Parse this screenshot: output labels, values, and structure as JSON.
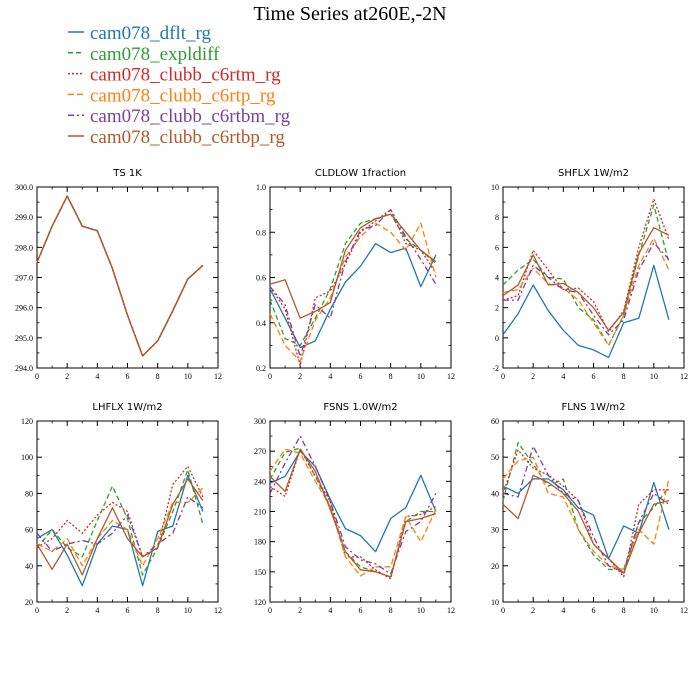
{
  "title": "Time Series at260E,-2N",
  "legend": [
    {
      "name": "cam078_dflt_rg",
      "color": "#1f77b4",
      "dash": ""
    },
    {
      "name": "cam078_expldiff",
      "color": "#2ca02c",
      "dash": "5,3"
    },
    {
      "name": "cam078_clubb_c6rtm_rg",
      "color": "#d62728",
      "dash": "2,2"
    },
    {
      "name": "cam078_clubb_c6rtp_rg",
      "color": "#ff7f0e",
      "dash": "6,3"
    },
    {
      "name": "cam078_clubb_c6rtbm_rg",
      "color": "#7b3fa0",
      "dash": "6,3,2,3"
    },
    {
      "name": "cam078_clubb_c6rtbp_rg",
      "color": "#b0592a",
      "dash": ""
    }
  ],
  "chart_data": [
    {
      "type": "line",
      "title": "TS   1K",
      "x": [
        0,
        1,
        2,
        3,
        4,
        5,
        6,
        7,
        8,
        9,
        10,
        11
      ],
      "xlim": [
        0,
        12
      ],
      "xticks": [
        0,
        2,
        4,
        6,
        8,
        10,
        12
      ],
      "ylim": [
        294.0,
        300.0
      ],
      "yticks": [
        "294.0",
        "295.0",
        "296.0",
        "297.0",
        "298.0",
        "299.0",
        "300.0"
      ],
      "series": [
        {
          "values": [
            297.5,
            298.7,
            299.7,
            298.7,
            298.55,
            297.3,
            295.75,
            294.4,
            294.9,
            295.9,
            296.95,
            297.4
          ]
        },
        {
          "values": [
            297.5,
            298.7,
            299.7,
            298.7,
            298.55,
            297.3,
            295.75,
            294.4,
            294.9,
            295.9,
            296.95,
            297.4
          ]
        },
        {
          "values": [
            297.5,
            298.7,
            299.7,
            298.7,
            298.55,
            297.3,
            295.75,
            294.4,
            294.9,
            295.9,
            296.95,
            297.4
          ]
        },
        {
          "values": [
            297.5,
            298.7,
            299.7,
            298.7,
            298.55,
            297.3,
            295.75,
            294.4,
            294.9,
            295.9,
            296.95,
            297.4
          ]
        },
        {
          "values": [
            297.5,
            298.7,
            299.7,
            298.7,
            298.55,
            297.3,
            295.75,
            294.4,
            294.9,
            295.9,
            296.95,
            297.4
          ]
        },
        {
          "values": [
            297.5,
            298.7,
            299.7,
            298.7,
            298.55,
            297.3,
            295.75,
            294.4,
            294.9,
            295.9,
            296.95,
            297.4
          ]
        }
      ]
    },
    {
      "type": "line",
      "title": "CLDLOW   1fraction",
      "x": [
        0,
        1,
        2,
        3,
        4,
        5,
        6,
        7,
        8,
        9,
        10,
        11
      ],
      "xlim": [
        0,
        12
      ],
      "xticks": [
        0,
        2,
        4,
        6,
        8,
        10,
        12
      ],
      "ylim": [
        0.2,
        1.0
      ],
      "yticks": [
        "0.2",
        "0.4",
        "0.6",
        "0.8",
        "1.0"
      ],
      "series": [
        {
          "values": [
            0.55,
            0.42,
            0.29,
            0.32,
            0.46,
            0.58,
            0.65,
            0.75,
            0.71,
            0.73,
            0.56,
            0.7
          ]
        },
        {
          "values": [
            0.5,
            0.33,
            0.3,
            0.42,
            0.55,
            0.75,
            0.84,
            0.86,
            0.88,
            0.77,
            0.72,
            0.66
          ]
        },
        {
          "values": [
            0.56,
            0.46,
            0.21,
            0.51,
            0.54,
            0.66,
            0.8,
            0.85,
            0.9,
            0.75,
            0.72,
            0.62
          ]
        },
        {
          "values": [
            0.44,
            0.3,
            0.23,
            0.41,
            0.51,
            0.69,
            0.78,
            0.84,
            0.8,
            0.72,
            0.84,
            0.6
          ]
        },
        {
          "values": [
            0.56,
            0.48,
            0.25,
            0.48,
            0.42,
            0.67,
            0.81,
            0.83,
            0.9,
            0.78,
            0.68,
            0.57
          ]
        },
        {
          "values": [
            0.57,
            0.59,
            0.42,
            0.45,
            0.49,
            0.72,
            0.82,
            0.86,
            0.88,
            0.8,
            0.72,
            0.67
          ]
        }
      ]
    },
    {
      "type": "line",
      "title": "SHFLX   1W/m2",
      "x": [
        0,
        1,
        2,
        3,
        4,
        5,
        6,
        7,
        8,
        9,
        10,
        11
      ],
      "xlim": [
        0,
        12
      ],
      "xticks": [
        0,
        2,
        4,
        6,
        8,
        10,
        12
      ],
      "ylim": [
        -2,
        10
      ],
      "yticks": [
        "-2",
        "0",
        "2",
        "4",
        "6",
        "8",
        "10"
      ],
      "series": [
        {
          "values": [
            0.2,
            1.6,
            3.5,
            1.8,
            0.5,
            -0.5,
            -0.8,
            -1.3,
            1.0,
            1.3,
            4.8,
            1.2
          ]
        },
        {
          "values": [
            3.5,
            4.5,
            5.2,
            4.0,
            3.9,
            2.0,
            1.2,
            -0.5,
            1.5,
            5.5,
            8.8,
            5.0
          ]
        },
        {
          "values": [
            2.5,
            2.8,
            5.8,
            4.5,
            3.2,
            3.3,
            2.4,
            0.4,
            1.8,
            6.0,
            9.2,
            6.5
          ]
        },
        {
          "values": [
            3.0,
            3.2,
            4.6,
            3.6,
            3.3,
            2.5,
            1.0,
            -0.5,
            1.5,
            4.8,
            6.6,
            4.5
          ]
        },
        {
          "values": [
            2.5,
            2.5,
            4.8,
            4.0,
            3.2,
            3.0,
            1.5,
            0.2,
            1.2,
            4.5,
            6.3,
            5.2
          ]
        },
        {
          "values": [
            2.8,
            3.5,
            5.5,
            3.5,
            3.6,
            3.0,
            2.0,
            0.5,
            1.7,
            5.6,
            7.3,
            6.8
          ]
        }
      ]
    },
    {
      "type": "line",
      "title": "LHFLX   1W/m2",
      "x": [
        0,
        1,
        2,
        3,
        4,
        5,
        6,
        7,
        8,
        9,
        10,
        11
      ],
      "xlim": [
        0,
        12
      ],
      "xticks": [
        0,
        2,
        4,
        6,
        8,
        10,
        12
      ],
      "ylim": [
        20,
        120
      ],
      "yticks": [
        "20",
        "40",
        "60",
        "80",
        "100",
        "120"
      ],
      "series": [
        {
          "values": [
            55,
            60,
            46,
            29,
            52,
            62,
            60,
            29,
            59,
            62,
            90,
            70
          ]
        },
        {
          "values": [
            50,
            60,
            50,
            45,
            65,
            84,
            66,
            35,
            50,
            70,
            93,
            63
          ]
        },
        {
          "values": [
            50,
            55,
            65,
            58,
            68,
            75,
            70,
            45,
            50,
            85,
            95,
            78
          ]
        },
        {
          "values": [
            52,
            48,
            55,
            40,
            55,
            65,
            60,
            40,
            55,
            75,
            75,
            83
          ]
        },
        {
          "values": [
            58,
            48,
            52,
            54,
            52,
            58,
            68,
            45,
            52,
            58,
            78,
            72
          ]
        },
        {
          "values": [
            52,
            38,
            52,
            35,
            55,
            72,
            55,
            45,
            50,
            74,
            88,
            76
          ]
        }
      ]
    },
    {
      "type": "line",
      "title": "FSNS   1.0W/m2",
      "x": [
        0,
        1,
        2,
        3,
        4,
        5,
        6,
        7,
        8,
        9,
        10,
        11
      ],
      "xlim": [
        0,
        12
      ],
      "xticks": [
        0,
        2,
        4,
        6,
        8,
        10,
        12
      ],
      "ylim": [
        120,
        300
      ],
      "yticks": [
        "120",
        "150",
        "180",
        "210",
        "240",
        "270",
        "300"
      ],
      "series": [
        {
          "values": [
            238,
            245,
            270,
            255,
            222,
            193,
            186,
            170,
            203,
            214,
            246,
            210
          ]
        },
        {
          "values": [
            242,
            269,
            273,
            245,
            215,
            170,
            155,
            150,
            145,
            200,
            210,
            210
          ]
        },
        {
          "values": [
            235,
            225,
            272,
            245,
            220,
            165,
            165,
            152,
            143,
            205,
            207,
            215
          ]
        },
        {
          "values": [
            250,
            272,
            268,
            240,
            215,
            165,
            146,
            155,
            155,
            205,
            180,
            212
          ]
        },
        {
          "values": [
            228,
            258,
            285,
            255,
            220,
            175,
            162,
            158,
            148,
            190,
            200,
            228
          ]
        },
        {
          "values": [
            245,
            230,
            272,
            250,
            212,
            170,
            152,
            150,
            145,
            200,
            203,
            208
          ]
        }
      ]
    },
    {
      "type": "line",
      "title": "FLNS   1W/m2",
      "x": [
        0,
        1,
        2,
        3,
        4,
        5,
        6,
        7,
        8,
        9,
        10,
        11
      ],
      "xlim": [
        0,
        12
      ],
      "xticks": [
        0,
        2,
        4,
        6,
        8,
        10,
        12
      ],
      "ylim": [
        10,
        60
      ],
      "yticks": [
        "10",
        "20",
        "30",
        "40",
        "50",
        "60"
      ],
      "series": [
        {
          "values": [
            42,
            40,
            44,
            44,
            41,
            36,
            34,
            22,
            31,
            29,
            43,
            30
          ]
        },
        {
          "values": [
            38,
            54,
            48,
            42,
            44,
            30,
            23,
            19,
            19,
            32,
            36,
            42
          ]
        },
        {
          "values": [
            40,
            52,
            47,
            45,
            42,
            38,
            26,
            22,
            17,
            37,
            41,
            41
          ]
        },
        {
          "values": [
            44,
            49,
            50,
            40,
            39,
            30,
            24,
            20,
            19,
            30,
            26,
            44
          ]
        },
        {
          "values": [
            40,
            39,
            53,
            45,
            40,
            38,
            28,
            20,
            18,
            32,
            40,
            37
          ]
        },
        {
          "values": [
            37,
            33,
            45,
            43,
            40,
            35,
            26,
            22,
            18,
            29,
            37,
            38
          ]
        }
      ]
    }
  ]
}
